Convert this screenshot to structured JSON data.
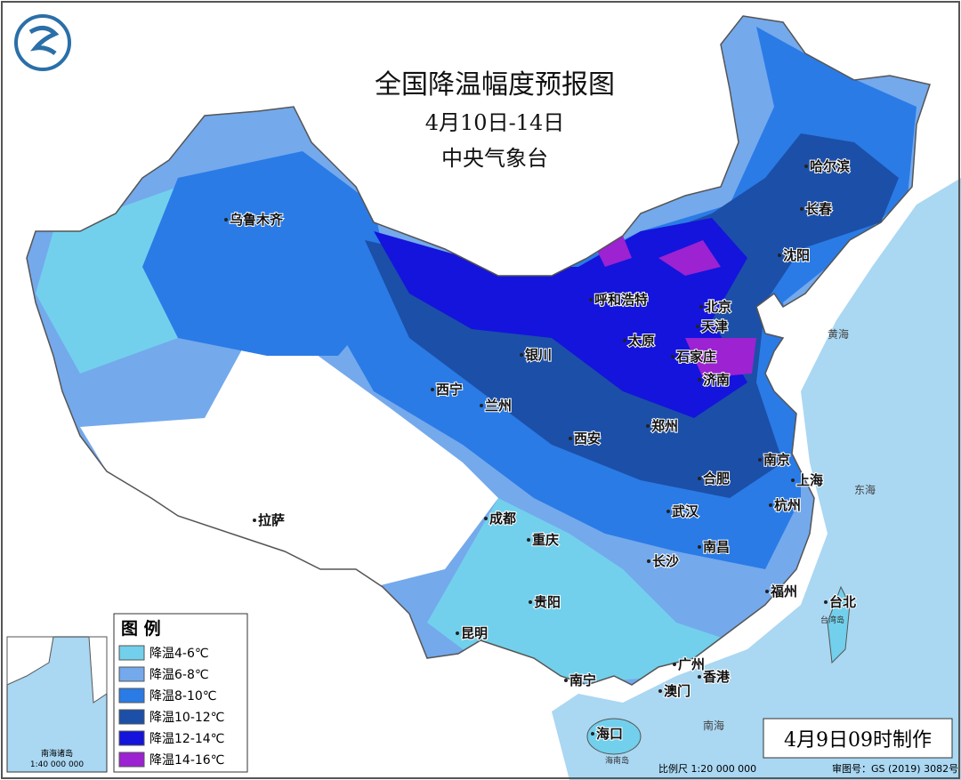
{
  "header": {
    "title": "全国降温幅度预报图",
    "date": "4月10日-14日",
    "issuer": "中央气象台"
  },
  "legend": {
    "title": "图 例",
    "items": [
      {
        "label": "降温4-6℃",
        "color": "#72d0ec"
      },
      {
        "label": "降温6-8℃",
        "color": "#74a9ec"
      },
      {
        "label": "降温8-10℃",
        "color": "#2a7be6"
      },
      {
        "label": "降温10-12℃",
        "color": "#1c4fa8"
      },
      {
        "label": "降温12-14℃",
        "color": "#1414dc"
      },
      {
        "label": "降温14-16℃",
        "color": "#9c22d2"
      }
    ]
  },
  "cities": [
    "乌鲁木齐",
    "哈尔滨",
    "长春",
    "沈阳",
    "北京",
    "天津",
    "呼和浩特",
    "太原",
    "石家庄",
    "济南",
    "银川",
    "西宁",
    "兰州",
    "西安",
    "郑州",
    "南京",
    "上海",
    "合肥",
    "杭州",
    "武汉",
    "成都",
    "重庆",
    "拉萨",
    "长沙",
    "南昌",
    "贵阳",
    "福州",
    "台北",
    "昆明",
    "广州",
    "香港",
    "澳门",
    "南宁",
    "海口"
  ],
  "sea_labels": [
    "黄海",
    "东海",
    "南海"
  ],
  "island_labels": [
    "台湾岛",
    "海南岛"
  ],
  "stamp": "4月9日09时制作",
  "footer": {
    "scale": "比例尺 1:20 000 000",
    "approval": "审图号：GS (2019) 3082号"
  },
  "inset": {
    "label": "南海诸岛",
    "scale": "1:40 000 000"
  }
}
